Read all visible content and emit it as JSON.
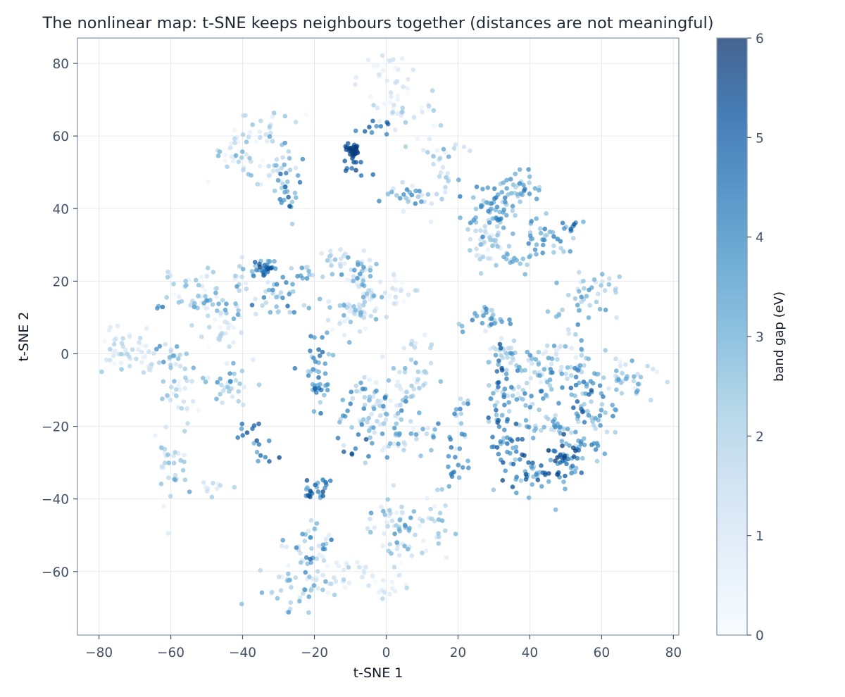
{
  "chart_data": {
    "type": "scatter",
    "title": "The nonlinear map: t-SNE keeps neighbours together (distances are not meaningful)",
    "xlabel": "t-SNE 1",
    "ylabel": "t-SNE 2",
    "xlim": [
      -86,
      81.5
    ],
    "ylim": [
      -77.5,
      87
    ],
    "x_ticks": [
      -80,
      -60,
      -40,
      -20,
      0,
      20,
      40,
      60,
      80
    ],
    "y_ticks": [
      -60,
      -40,
      -20,
      0,
      20,
      40,
      60,
      80
    ],
    "x_tick_labels": [
      "−80",
      "−60",
      "−40",
      "−20",
      "0",
      "20",
      "40",
      "60",
      "80"
    ],
    "y_tick_labels": [
      "−60",
      "−40",
      "−20",
      "0",
      "20",
      "40",
      "60",
      "80"
    ],
    "grid": true,
    "point_alpha": 0.75,
    "colorbar": {
      "label": "band gap (eV)",
      "range": [
        0,
        6
      ],
      "ticks": [
        0,
        1,
        2,
        3,
        4,
        5,
        6
      ],
      "tick_labels": [
        "0",
        "1",
        "2",
        "3",
        "4",
        "5",
        "6"
      ],
      "colors": [
        "#f7fbff",
        "#deebf7",
        "#c6dbef",
        "#9ecae1",
        "#6baed6",
        "#4292c6",
        "#2171b5",
        "#08519c",
        "#08306b"
      ]
    },
    "clusters": [
      {
        "cx": -9.5,
        "cy": 55.5,
        "sx": 1.2,
        "sy": 1.2,
        "n": 40,
        "v": [
          4.8,
          5.9
        ]
      },
      {
        "cx": -11,
        "cy": 50,
        "sx": 2.5,
        "sy": 1.2,
        "n": 6,
        "v": [
          4.2,
          5.8
        ]
      },
      {
        "cx": -22,
        "cy": 66,
        "sx": 0.5,
        "sy": 0.5,
        "n": 1,
        "v": [
          0,
          1.5
        ]
      },
      {
        "cx": -35,
        "cy": 62,
        "sx": 4,
        "sy": 3,
        "n": 25,
        "v": [
          0.1,
          3.5
        ]
      },
      {
        "cx": -43,
        "cy": 54,
        "sx": 3.5,
        "sy": 3.5,
        "n": 25,
        "v": [
          0.1,
          3.5
        ]
      },
      {
        "cx": -33,
        "cy": 50,
        "sx": 4,
        "sy": 3,
        "n": 25,
        "v": [
          0.1,
          3
        ]
      },
      {
        "cx": -27.5,
        "cy": 46,
        "sx": 1.8,
        "sy": 5,
        "n": 28,
        "v": [
          2,
          5.5
        ]
      },
      {
        "cx": 0,
        "cy": 73,
        "sx": 3,
        "sy": 5,
        "n": 35,
        "v": [
          0,
          1.5
        ]
      },
      {
        "cx": 7,
        "cy": 66,
        "sx": 5,
        "sy": 3,
        "n": 25,
        "v": [
          0,
          2.5
        ]
      },
      {
        "cx": -2,
        "cy": 62.5,
        "sx": 3,
        "sy": 1.5,
        "n": 10,
        "v": [
          3.5,
          5.5
        ]
      },
      {
        "cx": 13,
        "cy": 56,
        "sx": 4,
        "sy": 1.5,
        "n": 15,
        "v": [
          0.5,
          3.5
        ]
      },
      {
        "cx": 6,
        "cy": 43,
        "sx": 4,
        "sy": 2,
        "n": 25,
        "v": [
          0.5,
          4.5
        ]
      },
      {
        "cx": 15,
        "cy": 45,
        "sx": 2,
        "sy": 4,
        "n": 15,
        "v": [
          0,
          2.5
        ]
      },
      {
        "cx": 30,
        "cy": 40,
        "sx": 4,
        "sy": 4,
        "n": 70,
        "v": [
          1.5,
          4.5
        ]
      },
      {
        "cx": 28,
        "cy": 30,
        "sx": 3,
        "sy": 3.5,
        "n": 35,
        "v": [
          0.5,
          3
        ]
      },
      {
        "cx": 37,
        "cy": 46,
        "sx": 3,
        "sy": 2,
        "n": 25,
        "v": [
          1.5,
          4.5
        ]
      },
      {
        "cx": 34,
        "cy": 25.5,
        "sx": 3,
        "sy": 1.5,
        "n": 15,
        "v": [
          1.5,
          3.5
        ]
      },
      {
        "cx": 45,
        "cy": 32,
        "sx": 4,
        "sy": 3,
        "n": 45,
        "v": [
          2,
          4.5
        ]
      },
      {
        "cx": 52,
        "cy": 35.5,
        "sx": 1,
        "sy": 0.5,
        "n": 2,
        "v": [
          4.5,
          5.5
        ]
      },
      {
        "cx": 58,
        "cy": 19,
        "sx": 4,
        "sy": 3,
        "n": 25,
        "v": [
          1,
          3.5
        ]
      },
      {
        "cx": 52,
        "cy": 14,
        "sx": 3,
        "sy": 2.5,
        "n": 20,
        "v": [
          1,
          4
        ]
      },
      {
        "cx": -34,
        "cy": 24,
        "sx": 2,
        "sy": 1.2,
        "n": 28,
        "v": [
          3,
          5.8
        ]
      },
      {
        "cx": -40,
        "cy": 21,
        "sx": 2.5,
        "sy": 3,
        "n": 15,
        "v": [
          0.5,
          3.5
        ]
      },
      {
        "cx": -30,
        "cy": 16,
        "sx": 3,
        "sy": 3,
        "n": 30,
        "v": [
          1.5,
          5
        ]
      },
      {
        "cx": -23,
        "cy": 22.5,
        "sx": 2.5,
        "sy": 1.2,
        "n": 12,
        "v": [
          1.5,
          4
        ]
      },
      {
        "cx": -15,
        "cy": 27,
        "sx": 2,
        "sy": 2,
        "n": 15,
        "v": [
          1,
          3
        ]
      },
      {
        "cx": -8,
        "cy": 22,
        "sx": 3,
        "sy": 3,
        "n": 35,
        "v": [
          0.5,
          4
        ]
      },
      {
        "cx": -9,
        "cy": 12.5,
        "sx": 4,
        "sy": 3,
        "n": 60,
        "v": [
          0.3,
          3.5
        ]
      },
      {
        "cx": 2,
        "cy": 17,
        "sx": 4,
        "sy": 2,
        "n": 25,
        "v": [
          0,
          2
        ]
      },
      {
        "cx": -55,
        "cy": 18,
        "sx": 4,
        "sy": 3,
        "n": 30,
        "v": [
          0.1,
          3
        ]
      },
      {
        "cx": -46,
        "cy": 13,
        "sx": 4,
        "sy": 3,
        "n": 35,
        "v": [
          0.3,
          4
        ]
      },
      {
        "cx": -45,
        "cy": 6,
        "sx": 3,
        "sy": 2,
        "n": 20,
        "v": [
          0,
          2
        ]
      },
      {
        "cx": -64,
        "cy": 13.5,
        "sx": 1.5,
        "sy": 0.5,
        "n": 3,
        "v": [
          0.5,
          5
        ]
      },
      {
        "cx": 8,
        "cy": 3,
        "sx": 2,
        "sy": 1.5,
        "n": 10,
        "v": [
          0.5,
          2.5
        ]
      },
      {
        "cx": -75,
        "cy": 2,
        "sx": 3,
        "sy": 4,
        "n": 30,
        "v": [
          0,
          2.5
        ]
      },
      {
        "cx": -68,
        "cy": -1,
        "sx": 3,
        "sy": 3,
        "n": 25,
        "v": [
          0,
          2
        ]
      },
      {
        "cx": -60,
        "cy": -1,
        "sx": 2.5,
        "sy": 2,
        "n": 20,
        "v": [
          1,
          4
        ]
      },
      {
        "cx": -57,
        "cy": -11,
        "sx": 3.5,
        "sy": 2.5,
        "n": 25,
        "v": [
          0.2,
          3
        ]
      },
      {
        "cx": -45,
        "cy": -8,
        "sx": 4,
        "sy": 3,
        "n": 35,
        "v": [
          0.5,
          4
        ]
      },
      {
        "cx": -19,
        "cy": -6,
        "sx": 2,
        "sy": 5,
        "n": 45,
        "v": [
          2,
          5
        ]
      },
      {
        "cx": -39,
        "cy": -21,
        "sx": 1.5,
        "sy": 2,
        "n": 8,
        "v": [
          3.5,
          5.8
        ]
      },
      {
        "cx": -35,
        "cy": -26,
        "sx": 1.5,
        "sy": 2,
        "n": 10,
        "v": [
          3,
          5.8
        ]
      },
      {
        "cx": 8,
        "cy": -8,
        "sx": 4,
        "sy": 3,
        "n": 30,
        "v": [
          0.3,
          3.5
        ]
      },
      {
        "cx": -3,
        "cy": -15,
        "sx": 6,
        "sy": 5,
        "n": 85,
        "v": [
          0.3,
          4.5
        ]
      },
      {
        "cx": 5,
        "cy": -22,
        "sx": 6,
        "sy": 3,
        "n": 35,
        "v": [
          0.5,
          4
        ]
      },
      {
        "cx": -6,
        "cy": -26,
        "sx": 2,
        "sy": 1.5,
        "n": 6,
        "v": [
          4,
          5.8
        ]
      },
      {
        "cx": 20,
        "cy": -17,
        "sx": 1.5,
        "sy": 3,
        "n": 15,
        "v": [
          1,
          4.5
        ]
      },
      {
        "cx": 20,
        "cy": -30,
        "sx": 2,
        "sy": 2.5,
        "n": 15,
        "v": [
          3,
          5
        ]
      },
      {
        "cx": 28,
        "cy": 10,
        "sx": 4,
        "sy": 2,
        "n": 30,
        "v": [
          0.5,
          4.5
        ]
      },
      {
        "cx": 32,
        "cy": -8,
        "sx": 2,
        "sy": 8,
        "n": 55,
        "v": [
          1.5,
          5.5
        ]
      },
      {
        "cx": 35,
        "cy": -24,
        "sx": 3,
        "sy": 3,
        "n": 30,
        "v": [
          2,
          5.5
        ]
      },
      {
        "cx": 41,
        "cy": -8,
        "sx": 3.5,
        "sy": 5,
        "n": 45,
        "v": [
          0.5,
          4.5
        ]
      },
      {
        "cx": 40,
        "cy": -33,
        "sx": 3.5,
        "sy": 2.5,
        "n": 35,
        "v": [
          2,
          5.8
        ]
      },
      {
        "cx": 48,
        "cy": -2,
        "sx": 5,
        "sy": 3,
        "n": 40,
        "v": [
          0.5,
          4
        ]
      },
      {
        "cx": 55,
        "cy": -8,
        "sx": 2,
        "sy": 6,
        "n": 40,
        "v": [
          1.5,
          5.5
        ]
      },
      {
        "cx": 50,
        "cy": -30,
        "sx": 3,
        "sy": 4,
        "n": 55,
        "v": [
          2,
          5.8
        ]
      },
      {
        "cx": 57,
        "cy": -20,
        "sx": 4,
        "sy": 4,
        "n": 40,
        "v": [
          1.5,
          4.5
        ]
      },
      {
        "cx": 47,
        "cy": -20,
        "sx": 3,
        "sy": 4,
        "n": 25,
        "v": [
          1,
          4
        ]
      },
      {
        "cx": 68,
        "cy": -8,
        "sx": 5,
        "sy": 3,
        "n": 40,
        "v": [
          0.5,
          3.5
        ]
      },
      {
        "cx": 34,
        "cy": 0,
        "sx": 2.5,
        "sy": 2,
        "n": 15,
        "v": [
          0.5,
          2.5
        ]
      },
      {
        "cx": -59,
        "cy": -30,
        "sx": 2.5,
        "sy": 5,
        "n": 35,
        "v": [
          0.3,
          3.5
        ]
      },
      {
        "cx": -48,
        "cy": -37,
        "sx": 3,
        "sy": 1.5,
        "n": 10,
        "v": [
          0.2,
          2.5
        ]
      },
      {
        "cx": -19,
        "cy": -37,
        "sx": 2.5,
        "sy": 2,
        "n": 25,
        "v": [
          3,
          5.8
        ]
      },
      {
        "cx": -22,
        "cy": -55,
        "sx": 4,
        "sy": 4,
        "n": 45,
        "v": [
          0.5,
          5
        ]
      },
      {
        "cx": -25,
        "cy": -65,
        "sx": 5,
        "sy": 3.5,
        "n": 45,
        "v": [
          0,
          4
        ]
      },
      {
        "cx": -10,
        "cy": -60,
        "sx": 5,
        "sy": 2,
        "n": 25,
        "v": [
          0,
          1.5
        ]
      },
      {
        "cx": 2,
        "cy": -48,
        "sx": 5,
        "sy": 5,
        "n": 55,
        "v": [
          0.5,
          4
        ]
      },
      {
        "cx": 12,
        "cy": -45,
        "sx": 3,
        "sy": 5,
        "n": 25,
        "v": [
          0.5,
          3
        ]
      },
      {
        "cx": 0,
        "cy": -64,
        "sx": 3,
        "sy": 1.5,
        "n": 15,
        "v": [
          0,
          2
        ]
      }
    ]
  }
}
